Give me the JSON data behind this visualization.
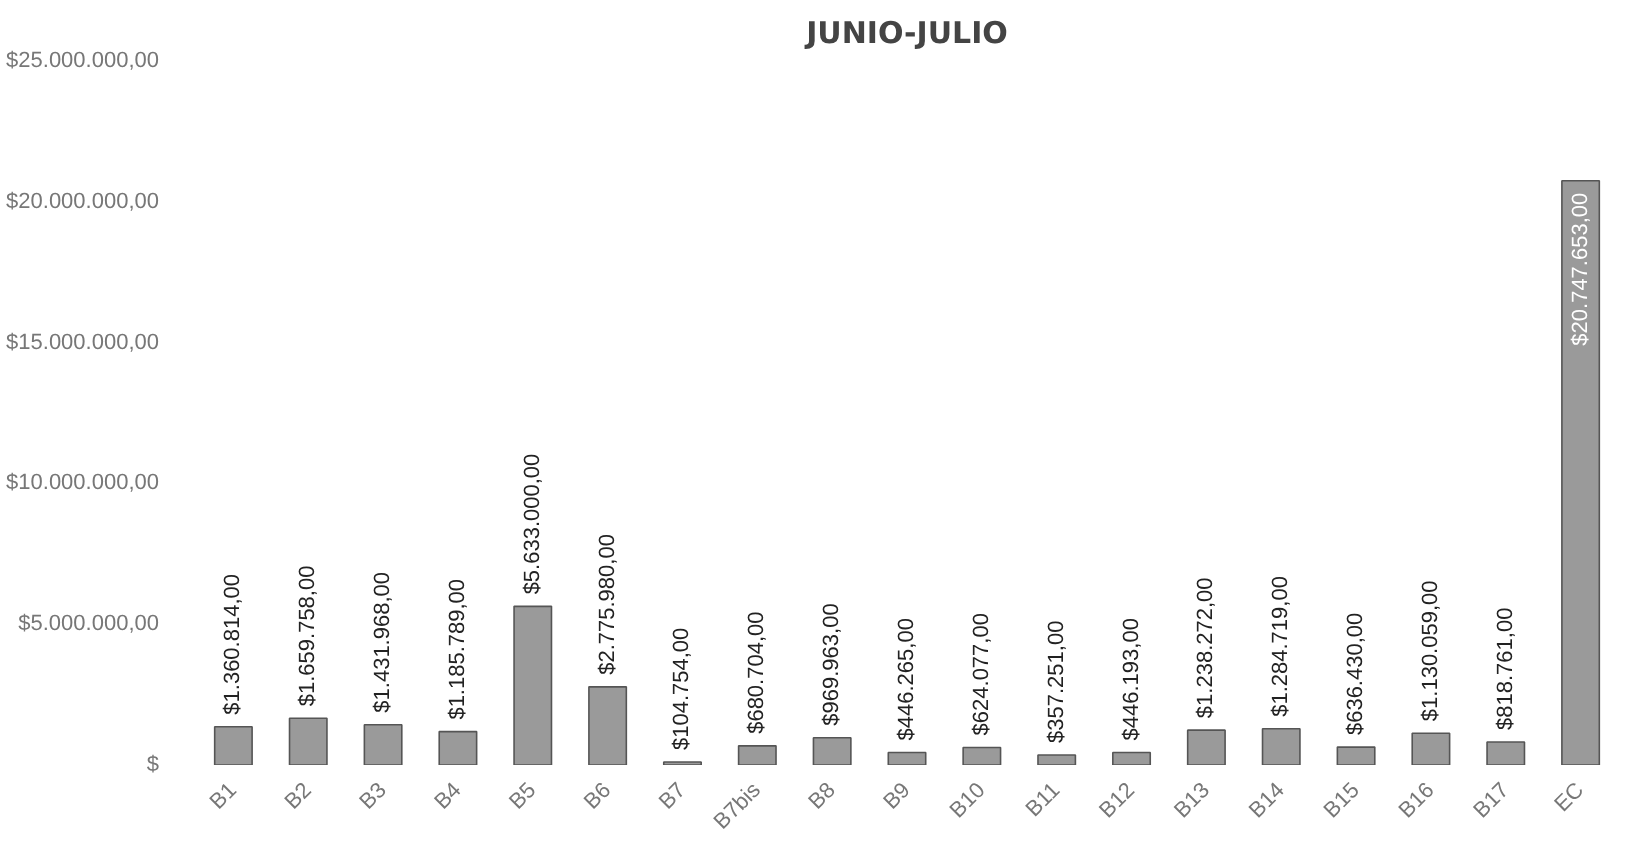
{
  "chart_data": {
    "type": "bar",
    "title": "JUNIO-JULIO",
    "categories": [
      "B1",
      "B2",
      "B3",
      "B4",
      "B5",
      "B6",
      "B7",
      "B7bis",
      "B8",
      "B9",
      "B10",
      "B11",
      "B12",
      "B13",
      "B14",
      "B15",
      "B16",
      "B17",
      "EC"
    ],
    "values": [
      1360814,
      1659758,
      1431968,
      1185789,
      5633000,
      2775980,
      104754,
      680704,
      969963,
      446265,
      624077,
      357251,
      446193,
      1238272,
      1284719,
      636430,
      1130059,
      818761,
      20747653
    ],
    "color": "#9a9a9a",
    "value_labels": [
      "$1.360.814,00",
      "$1.659.758,00",
      "$1.431.968,00",
      "$1.185.789,00",
      "$5.633.000,00",
      "$2.775.980,00",
      "$104.754,00",
      "$680.704,00",
      "$969.963,00",
      "$446.265,00",
      "$624.077,00",
      "$357.251,00",
      "$446.193,00",
      "$1.238.272,00",
      "$1.284.719,00",
      "$636.430,00",
      "$1.130.059,00",
      "$818.761,00",
      "$20.747.653,00"
    ],
    "ylim": [
      0,
      25000000
    ],
    "yticks": [
      {
        "value": 0,
        "label": "$"
      },
      {
        "value": 5000000,
        "label": "$5.000.000,00"
      },
      {
        "value": 10000000,
        "label": "$10.000.000,00"
      },
      {
        "value": 15000000,
        "label": "$15.000.000,00"
      },
      {
        "value": 20000000,
        "label": "$20.000.000,00"
      },
      {
        "value": 25000000,
        "label": "$25.000.000,00"
      }
    ],
    "grid": false
  }
}
